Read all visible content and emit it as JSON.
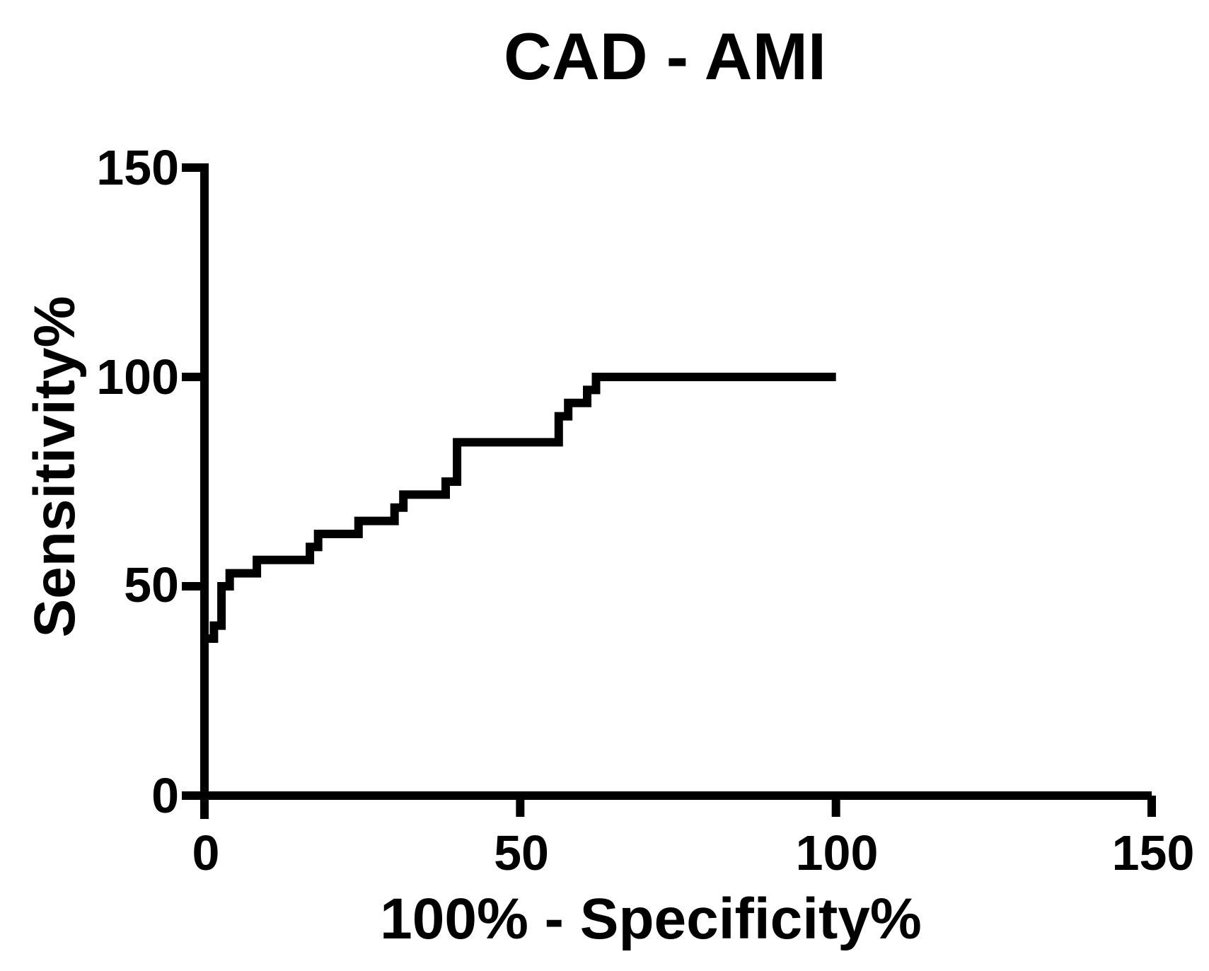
{
  "chart_data": {
    "type": "line",
    "subtype": "roc-step-curve",
    "title": "CAD - AMI",
    "xlabel": "100% - Specificity%",
    "ylabel": "Sensitivity%",
    "xlim": [
      0,
      150
    ],
    "ylim": [
      0,
      150
    ],
    "x_ticks": [
      0,
      50,
      100,
      150
    ],
    "y_ticks": [
      0,
      50,
      100,
      150
    ],
    "x_tick_labels": [
      "0",
      "50",
      "100",
      "150"
    ],
    "y_tick_labels": [
      "0",
      "50",
      "100",
      "150"
    ],
    "grid": "off",
    "legend": "none",
    "line_color": "#000000",
    "axis_color": "#000000",
    "background": "#ffffff",
    "series": [
      {
        "name": "ROC curve CAD vs AMI",
        "points": [
          [
            0,
            0
          ],
          [
            0,
            37.5
          ],
          [
            1.5,
            37.5
          ],
          [
            1.5,
            40.6
          ],
          [
            2.7,
            40.6
          ],
          [
            2.7,
            50
          ],
          [
            4,
            50
          ],
          [
            4,
            53.1
          ],
          [
            8.3,
            53.1
          ],
          [
            8.3,
            56.3
          ],
          [
            16.7,
            56.3
          ],
          [
            16.7,
            59.4
          ],
          [
            18,
            59.4
          ],
          [
            18,
            62.5
          ],
          [
            24.4,
            62.5
          ],
          [
            24.4,
            65.6
          ],
          [
            30.1,
            65.6
          ],
          [
            30.1,
            68.8
          ],
          [
            31.5,
            68.8
          ],
          [
            31.5,
            71.9
          ],
          [
            38.2,
            71.9
          ],
          [
            38.2,
            75
          ],
          [
            40,
            75
          ],
          [
            40,
            84.4
          ],
          [
            56.1,
            84.4
          ],
          [
            56.1,
            90.6
          ],
          [
            57.6,
            90.6
          ],
          [
            57.6,
            93.8
          ],
          [
            60.6,
            93.8
          ],
          [
            60.6,
            96.9
          ],
          [
            62,
            96.9
          ],
          [
            62,
            100
          ],
          [
            100,
            100
          ]
        ]
      }
    ]
  }
}
